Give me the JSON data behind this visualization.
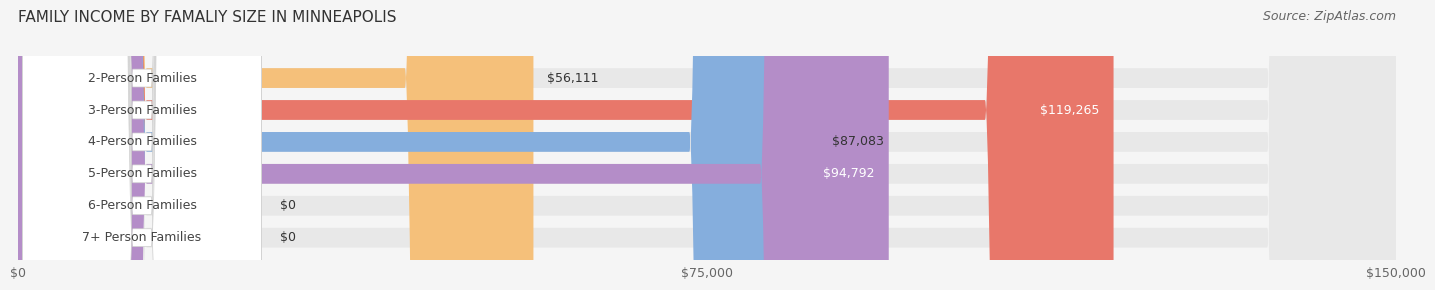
{
  "title": "FAMILY INCOME BY FAMALIY SIZE IN MINNEAPOLIS",
  "source": "Source: ZipAtlas.com",
  "categories": [
    "2-Person Families",
    "3-Person Families",
    "4-Person Families",
    "5-Person Families",
    "6-Person Families",
    "7+ Person Families"
  ],
  "values": [
    56111,
    119265,
    87083,
    94792,
    0,
    0
  ],
  "bar_colors": [
    "#F5C07A",
    "#E8776A",
    "#85AEDD",
    "#B48DC8",
    "#6EC9BC",
    "#A9B8E0"
  ],
  "label_colors": [
    "#333333",
    "#ffffff",
    "#333333",
    "#ffffff",
    "#333333",
    "#333333"
  ],
  "value_labels": [
    "$56,111",
    "$119,265",
    "$87,083",
    "$94,792",
    "$0",
    "$0"
  ],
  "xlim": [
    0,
    150000
  ],
  "xticks": [
    0,
    75000,
    150000
  ],
  "xtick_labels": [
    "$0",
    "$75,000",
    "$150,000"
  ],
  "background_color": "#f5f5f5",
  "bar_background_color": "#e8e8e8",
  "title_fontsize": 11,
  "source_fontsize": 9,
  "label_fontsize": 9,
  "value_fontsize": 9
}
